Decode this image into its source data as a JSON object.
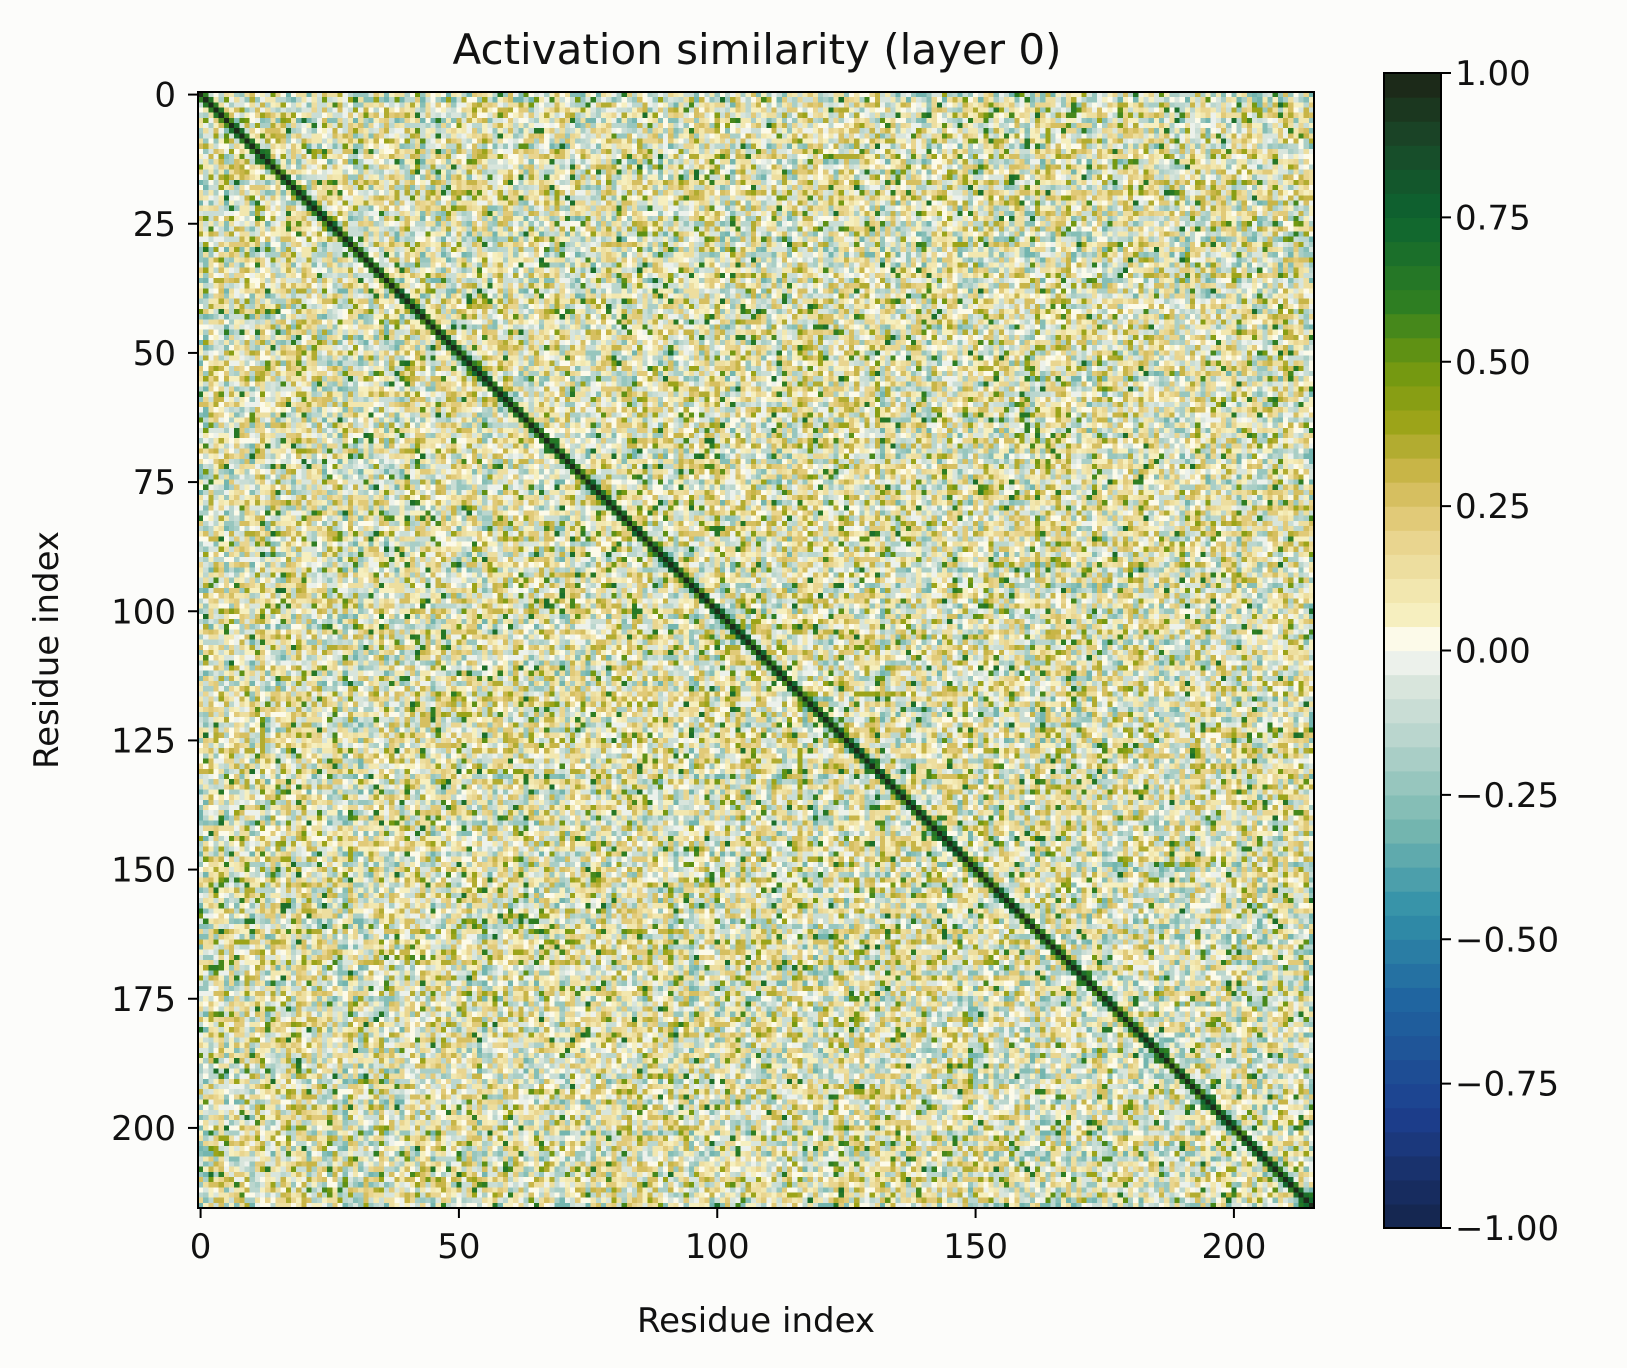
{
  "chart_data": {
    "type": "heatmap",
    "title": "Activation similarity (layer 0)",
    "xlabel": "Residue index",
    "ylabel": "Residue index",
    "n": 216,
    "xlim": [
      -0.5,
      215.5
    ],
    "ylim": [
      215.5,
      -0.5
    ],
    "xticks": [
      0,
      50,
      100,
      150,
      200
    ],
    "xtick_labels": [
      "0",
      "50",
      "100",
      "150",
      "200"
    ],
    "yticks": [
      0,
      25,
      50,
      75,
      100,
      125,
      150,
      175,
      200
    ],
    "ytick_labels": [
      "0",
      "25",
      "50",
      "75",
      "100",
      "125",
      "150",
      "175",
      "200"
    ],
    "colorbar": {
      "vmin": -1.0,
      "vmax": 1.0,
      "ticks": [
        1.0,
        0.75,
        0.5,
        0.25,
        0.0,
        -0.25,
        -0.5,
        -0.75,
        -1.0
      ],
      "tick_labels": [
        "1.00",
        "0.75",
        "0.50",
        "0.25",
        "0.00",
        "−0.25",
        "−0.50",
        "−0.75",
        "−1.00"
      ],
      "levels": 48,
      "colormap_stops": [
        {
          "v": -1.0,
          "color": "#14244a"
        },
        {
          "v": -0.8,
          "color": "#1d3f8e"
        },
        {
          "v": -0.6,
          "color": "#2066a0"
        },
        {
          "v": -0.45,
          "color": "#3291a8"
        },
        {
          "v": -0.3,
          "color": "#79b8b0"
        },
        {
          "v": -0.15,
          "color": "#b9d5cd"
        },
        {
          "v": -0.03,
          "color": "#e4ebe2"
        },
        {
          "v": 0.0,
          "color": "#ffffff"
        },
        {
          "v": 0.06,
          "color": "#f6f0c0"
        },
        {
          "v": 0.2,
          "color": "#e8d28a"
        },
        {
          "v": 0.3,
          "color": "#cfb74e"
        },
        {
          "v": 0.4,
          "color": "#9aa317"
        },
        {
          "v": 0.5,
          "color": "#6b9610"
        },
        {
          "v": 0.6,
          "color": "#2f7f22"
        },
        {
          "v": 0.75,
          "color": "#0d6430"
        },
        {
          "v": 0.88,
          "color": "#1a4828"
        },
        {
          "v": 1.0,
          "color": "#1c2416"
        }
      ]
    },
    "value_distribution": {
      "diagonal": 1.0,
      "off_diagonal_range": [
        -0.3,
        0.7
      ],
      "note": "off-diagonal values are mostly weak (about -0.25 to 0.35) with scattered positive spikes up to about 0.7"
    }
  }
}
